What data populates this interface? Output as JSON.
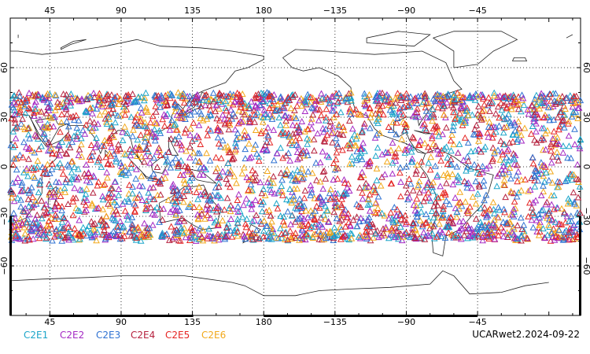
{
  "map": {
    "top_lon_labels": [
      "45",
      "90",
      "135",
      "180",
      "−135",
      "−90",
      "−45"
    ],
    "bottom_lon_labels": [
      "45",
      "90",
      "135",
      "180",
      "−135",
      "−90",
      "−45"
    ],
    "lat_labels": [
      "60",
      "30",
      "0",
      "−30",
      "−60"
    ],
    "missions": [
      {
        "name": "C2E1",
        "color": "#1ba5c9"
      },
      {
        "name": "C2E2",
        "color": "#a52ac4"
      },
      {
        "name": "C2E3",
        "color": "#2f72d2"
      },
      {
        "name": "C2E4",
        "color": "#b5213e"
      },
      {
        "name": "C2E5",
        "color": "#e52523"
      },
      {
        "name": "C2E6",
        "color": "#f2a81a"
      }
    ],
    "observation_region": {
      "lat_min": -45,
      "lat_max": 45
    },
    "source_label": "UCARwet2.2024-09-22"
  }
}
